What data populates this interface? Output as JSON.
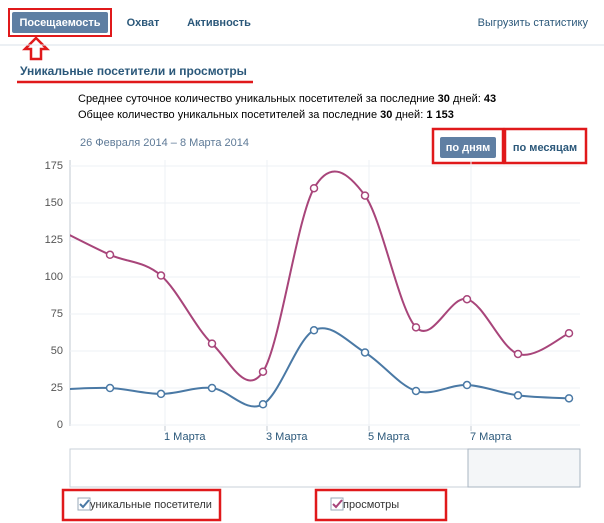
{
  "tabs": [
    "Посещаемость",
    "Охват",
    "Активность"
  ],
  "export": "Выгрузить статистику",
  "section_title": "Уникальные посетители и просмотры",
  "stats": [
    {
      "text": "Среднее суточное количество уникальных посетителей за последние",
      "days": "30",
      "unit": "дней:",
      "value": "43"
    },
    {
      "text": "Общее количество уникальных посетителей за последние",
      "days": "30",
      "unit": "дней:",
      "value": "1 153"
    }
  ],
  "date_range": "26 Февраля 2014 – 8 Марта 2014",
  "buttons": [
    "по дням",
    "по месяцам"
  ],
  "chart_data": {
    "type": "line",
    "categories": [
      null,
      null,
      "1 Марта",
      null,
      "3 Марта",
      null,
      "5 Марта",
      null,
      "7 Марта",
      null,
      null
    ],
    "series": [
      {
        "name": "уникальные посетители",
        "color": "#4a79a5",
        "values": [
          24,
          25,
          21,
          25,
          14,
          64,
          49,
          23,
          27,
          20,
          18
        ]
      },
      {
        "name": "просмотры",
        "color": "#a8457a",
        "values": [
          132,
          115,
          101,
          55,
          36,
          160,
          155,
          66,
          85,
          48,
          62
        ]
      }
    ],
    "ylim": [
      0,
      175
    ],
    "yticks": [
      0,
      25,
      50,
      75,
      100,
      125,
      150,
      175
    ],
    "grid": true
  }
}
